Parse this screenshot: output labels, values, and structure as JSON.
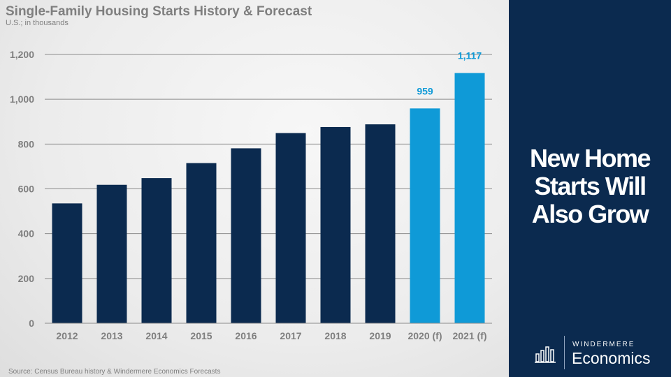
{
  "chart_data": {
    "type": "bar",
    "title": "Single-Family Housing Starts History & Forecast",
    "subtitle": "U.S.; in thousands",
    "xlabel": "",
    "ylabel": "",
    "ylim": [
      0,
      1200
    ],
    "yticks": [
      0,
      200,
      400,
      600,
      800,
      1000,
      1200
    ],
    "ytick_labels": [
      "0",
      "200",
      "400",
      "600",
      "800",
      "1,000",
      "1,200"
    ],
    "grid": true,
    "categories": [
      "2012",
      "2013",
      "2014",
      "2015",
      "2016",
      "2017",
      "2018",
      "2019",
      "2020 (f)",
      "2021 (f)"
    ],
    "values": [
      535,
      618,
      648,
      715,
      781,
      849,
      876,
      888,
      959,
      1117
    ],
    "forecast": [
      false,
      false,
      false,
      false,
      false,
      false,
      false,
      false,
      true,
      true
    ],
    "data_labels": [
      "",
      "",
      "",
      "",
      "",
      "",
      "",
      "",
      "959",
      "1,117"
    ],
    "colors": {
      "history": "#0b2a4f",
      "forecast": "#0f9ad7",
      "label": "#0f9ad7",
      "axis_text": "#7f7f7f",
      "grid": "#8c8c8c"
    }
  },
  "source": "Source: Census Bureau history & Windermere Economics Forecasts",
  "headline": [
    "New Home",
    "Starts Will",
    "Also Grow"
  ],
  "logo": {
    "icon": "bar-chart-icon",
    "brand": "WINDERMERE",
    "name": "Economics"
  }
}
